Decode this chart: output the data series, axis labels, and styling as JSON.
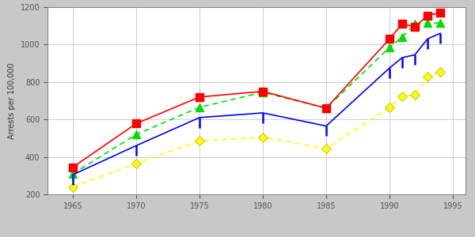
{
  "years": [
    1965,
    1970,
    1975,
    1980,
    1985,
    1990,
    1991,
    1992,
    1993,
    1994
  ],
  "age18": [
    345,
    578,
    720,
    750,
    660,
    1030,
    1110,
    1095,
    1155,
    1170
  ],
  "age17": [
    310,
    520,
    665,
    745,
    660,
    985,
    1040,
    1110,
    1115,
    1115
  ],
  "age16": [
    305,
    460,
    610,
    635,
    565,
    875,
    930,
    945,
    1030,
    1060
  ],
  "age15": [
    240,
    365,
    485,
    505,
    445,
    665,
    725,
    730,
    830,
    855
  ],
  "color18": "#ff0000",
  "color17": "#00dd00",
  "color16": "#0000ff",
  "color15": "#ffff00",
  "ylabel": "Arrests per 100,000",
  "ylim": [
    200,
    1200
  ],
  "xlim": [
    1963,
    1996
  ],
  "yticks": [
    200,
    400,
    600,
    800,
    1000,
    1200
  ],
  "xticks": [
    1965,
    1970,
    1975,
    1980,
    1985,
    1990,
    1995
  ],
  "bg_color": "#c8c8c8",
  "plot_bg": "#ffffff",
  "lw": 1.2,
  "ms": 7
}
